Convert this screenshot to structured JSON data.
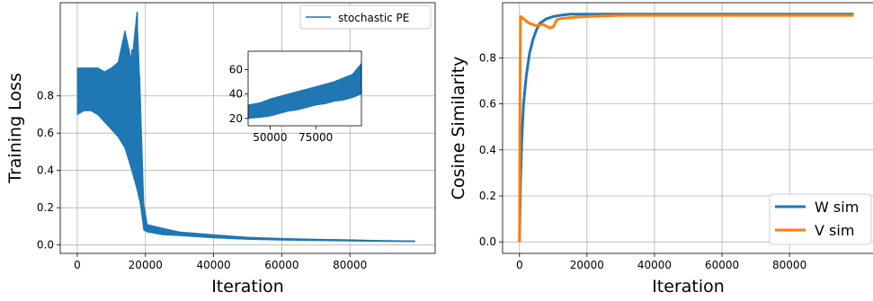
{
  "chart_data": [
    {
      "type": "line",
      "xlabel": "Iteration",
      "ylabel": "Training Loss",
      "xlim": [
        -5000,
        105000
      ],
      "ylim": [
        -0.045,
        1.3
      ],
      "xticks": [
        0,
        20000,
        40000,
        60000,
        80000
      ],
      "xtick_labels": [
        "0",
        "20000",
        "40000",
        "60000",
        "80000"
      ],
      "yticks": [
        0.0,
        0.2,
        0.4,
        0.6,
        0.8
      ],
      "ytick_labels": [
        "0.0",
        "0.2",
        "0.4",
        "0.6",
        "0.8"
      ],
      "grid": true,
      "legend": {
        "position": "upper right",
        "entries": [
          "stochastic PE"
        ]
      },
      "series": [
        {
          "name": "stochastic PE",
          "color": "#1f77b4",
          "x": [
            0,
            2000,
            4000,
            6000,
            8000,
            10000,
            12000,
            14000,
            16000,
            17500,
            18500,
            19500,
            20500,
            25000,
            30000,
            40000,
            50000,
            60000,
            70000,
            80000,
            90000,
            99000
          ],
          "y": [
            0.82,
            0.83,
            0.82,
            0.81,
            0.78,
            0.75,
            0.72,
            0.68,
            0.55,
            0.45,
            0.3,
            0.12,
            0.09,
            0.07,
            0.06,
            0.045,
            0.035,
            0.03,
            0.027,
            0.024,
            0.021,
            0.02
          ],
          "band_low": [
            0.7,
            0.72,
            0.72,
            0.7,
            0.66,
            0.62,
            0.58,
            0.52,
            0.4,
            0.3,
            0.22,
            0.08,
            0.07,
            0.055,
            0.05,
            0.038,
            0.03,
            0.026,
            0.024,
            0.021,
            0.019,
            0.018
          ],
          "band_high": [
            0.95,
            0.95,
            0.95,
            0.95,
            0.93,
            0.95,
            0.98,
            1.15,
            0.98,
            1.25,
            0.8,
            0.22,
            0.11,
            0.09,
            0.07,
            0.055,
            0.042,
            0.035,
            0.031,
            0.028,
            0.024,
            0.022
          ],
          "spikes": [
            {
              "x": 12500,
              "y": 1.0
            },
            {
              "x": 14000,
              "y": 1.12
            },
            {
              "x": 16000,
              "y": 1.05
            },
            {
              "x": 17200,
              "y": 0.98
            },
            {
              "x": 17600,
              "y": 1.25
            },
            {
              "x": 18300,
              "y": 0.9
            }
          ]
        }
      ],
      "inset": {
        "xlim": [
          38000,
          100000
        ],
        "ylim": [
          14,
          75
        ],
        "xticks": [
          50000,
          75000
        ],
        "xtick_labels": [
          "50000",
          "75000"
        ],
        "yticks": [
          20,
          40,
          60
        ],
        "ytick_labels": [
          "20",
          "40",
          "60"
        ],
        "series": [
          {
            "x": [
              38000,
              45000,
              50000,
              55000,
              60000,
              65000,
              70000,
              75000,
              80000,
              85000,
              90000,
              95000,
              100000
            ],
            "y": [
              26,
              27,
              29,
              31,
              33,
              34,
              36,
              38,
              39,
              41,
              43,
              45,
              48
            ],
            "band_low": [
              20,
              21,
              22,
              24,
              26,
              27,
              29,
              31,
              32,
              34,
              35,
              37,
              40
            ],
            "band_high": [
              31,
              33,
              36,
              38,
              40,
              42,
              44,
              46,
              48,
              50,
              53,
              56,
              65
            ]
          }
        ]
      }
    },
    {
      "type": "line",
      "xlabel": "Iteration",
      "ylabel": "Cosine Similarity",
      "xlim": [
        -5000,
        105000
      ],
      "ylim": [
        -0.05,
        1.04
      ],
      "xticks": [
        0,
        20000,
        40000,
        60000,
        80000
      ],
      "xtick_labels": [
        "0",
        "20000",
        "40000",
        "60000",
        "80000"
      ],
      "yticks": [
        0.0,
        0.2,
        0.4,
        0.6,
        0.8
      ],
      "ytick_labels": [
        "0.0",
        "0.2",
        "0.4",
        "0.6",
        "0.8"
      ],
      "grid": true,
      "legend": {
        "position": "lower right",
        "entries": [
          "W sim",
          "V sim"
        ]
      },
      "series": [
        {
          "name": "W sim",
          "color": "#1f77b4",
          "x": [
            0,
            300,
            700,
            1200,
            2000,
            3000,
            4000,
            5000,
            6000,
            8000,
            10000,
            12000,
            15000,
            20000,
            30000,
            50000,
            80000,
            99000
          ],
          "y": [
            0.0,
            0.25,
            0.45,
            0.6,
            0.72,
            0.82,
            0.88,
            0.92,
            0.95,
            0.97,
            0.98,
            0.985,
            0.99,
            0.99,
            0.99,
            0.99,
            0.99,
            0.99
          ]
        },
        {
          "name": "V sim",
          "color": "#ff7f0e",
          "x": [
            0,
            150,
            300,
            800,
            2000,
            3000,
            5000,
            7000,
            9000,
            10000,
            11000,
            12000,
            15000,
            20000,
            25000,
            30000,
            50000,
            80000,
            99000
          ],
          "y": [
            0.0,
            0.6,
            0.98,
            0.975,
            0.96,
            0.95,
            0.94,
            0.945,
            0.93,
            0.935,
            0.965,
            0.97,
            0.975,
            0.98,
            0.982,
            0.985,
            0.985,
            0.985,
            0.985
          ]
        }
      ]
    }
  ]
}
